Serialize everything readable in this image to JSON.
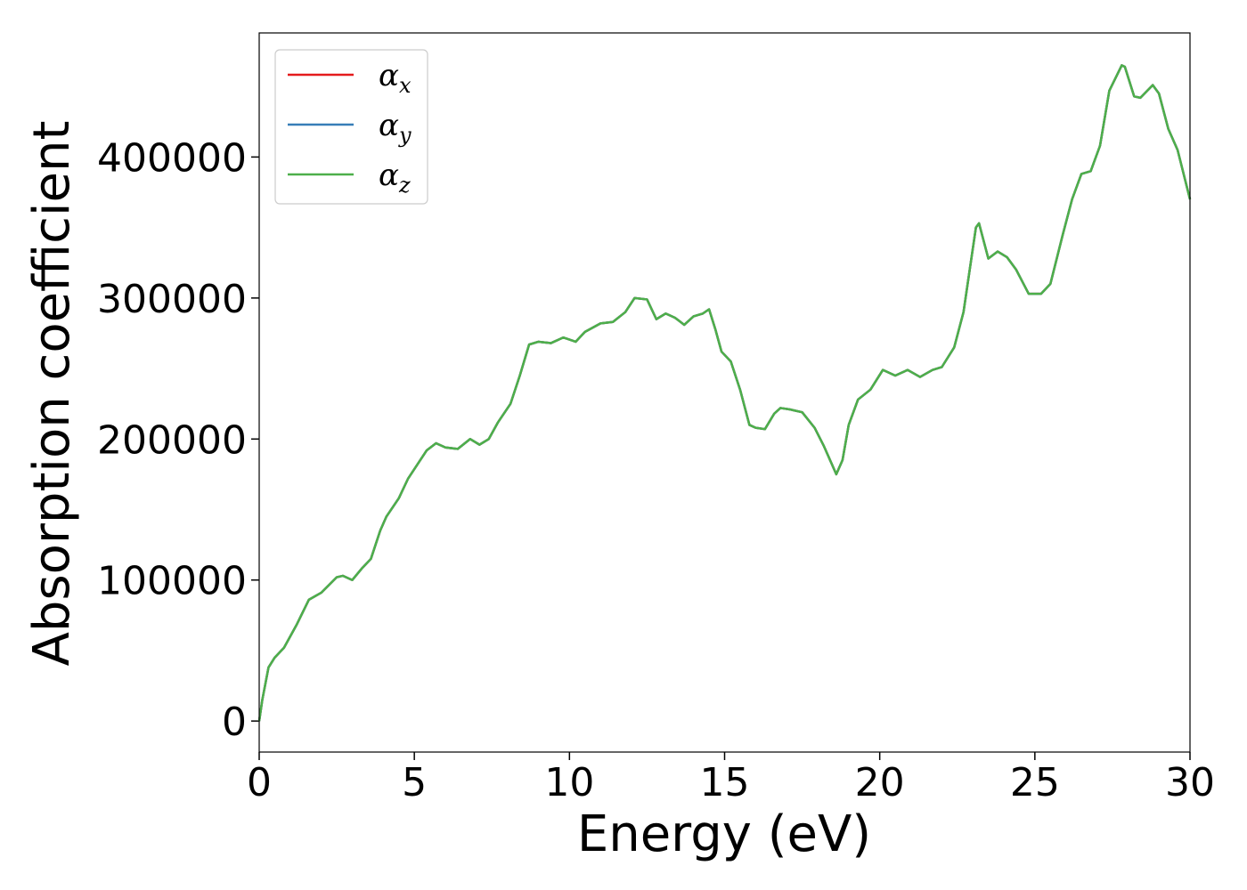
{
  "chart_data": {
    "type": "line",
    "xlabel": "Energy (eV)",
    "ylabel": "Absorption coefficient",
    "xlim": [
      0,
      30
    ],
    "ylim": [
      -22000,
      488000
    ],
    "xticks": [
      0,
      5,
      10,
      15,
      20,
      25,
      30
    ],
    "yticks": [
      0,
      100000,
      200000,
      300000,
      400000
    ],
    "legend": "upper left",
    "grid": false,
    "x": [
      0,
      0.1,
      0.3,
      0.5,
      0.8,
      1.2,
      1.6,
      2.0,
      2.5,
      2.7,
      3.0,
      3.3,
      3.6,
      3.9,
      4.1,
      4.5,
      4.8,
      5.1,
      5.4,
      5.7,
      6.0,
      6.4,
      6.8,
      7.1,
      7.4,
      7.7,
      8.1,
      8.4,
      8.7,
      9.0,
      9.4,
      9.8,
      10.2,
      10.5,
      11.0,
      11.4,
      11.8,
      12.1,
      12.5,
      12.8,
      13.1,
      13.4,
      13.7,
      14.0,
      14.3,
      14.5,
      14.7,
      14.9,
      15.2,
      15.5,
      15.8,
      16.0,
      16.3,
      16.6,
      16.8,
      17.1,
      17.5,
      17.9,
      18.2,
      18.6,
      18.8,
      19.0,
      19.3,
      19.7,
      20.1,
      20.5,
      20.9,
      21.3,
      21.7,
      22.0,
      22.4,
      22.7,
      22.9,
      23.1,
      23.2,
      23.5,
      23.8,
      24.1,
      24.4,
      24.8,
      25.2,
      25.5,
      25.9,
      26.2,
      26.5,
      26.8,
      27.1,
      27.4,
      27.8,
      27.9,
      28.2,
      28.4,
      28.8,
      29.0,
      29.3,
      29.6,
      30.0
    ],
    "series": [
      {
        "name": "αx",
        "color": "#e41a1c",
        "values": [
          0,
          15000,
          38000,
          45000,
          52000,
          68000,
          86000,
          91000,
          102000,
          103000,
          100000,
          108000,
          115000,
          135000,
          145000,
          158000,
          172000,
          182000,
          192000,
          197000,
          194000,
          193000,
          200000,
          196000,
          200000,
          212000,
          225000,
          245000,
          267000,
          269000,
          268000,
          272000,
          269000,
          276000,
          282000,
          283000,
          290000,
          300000,
          299000,
          285000,
          289000,
          286000,
          281000,
          287000,
          289000,
          292000,
          278000,
          262000,
          255000,
          235000,
          210000,
          208000,
          207000,
          218000,
          222000,
          221000,
          219000,
          208000,
          195000,
          175000,
          185000,
          210000,
          228000,
          235000,
          249000,
          245000,
          249000,
          244000,
          249000,
          251000,
          265000,
          290000,
          320000,
          350000,
          353000,
          328000,
          333000,
          329000,
          320000,
          303000,
          303000,
          310000,
          345000,
          370000,
          388000,
          390000,
          408000,
          447000,
          465000,
          464000,
          443000,
          442000,
          451000,
          445000,
          420000,
          405000,
          370000
        ]
      },
      {
        "name": "αy",
        "color": "#377eb8",
        "values": [
          0,
          15000,
          38000,
          45000,
          52000,
          68000,
          86000,
          91000,
          102000,
          103000,
          100000,
          108000,
          115000,
          135000,
          145000,
          158000,
          172000,
          182000,
          192000,
          197000,
          194000,
          193000,
          200000,
          196000,
          200000,
          212000,
          225000,
          245000,
          267000,
          269000,
          268000,
          272000,
          269000,
          276000,
          282000,
          283000,
          290000,
          300000,
          299000,
          285000,
          289000,
          286000,
          281000,
          287000,
          289000,
          292000,
          278000,
          262000,
          255000,
          235000,
          210000,
          208000,
          207000,
          218000,
          222000,
          221000,
          219000,
          208000,
          195000,
          175000,
          185000,
          210000,
          228000,
          235000,
          249000,
          245000,
          249000,
          244000,
          249000,
          251000,
          265000,
          290000,
          320000,
          350000,
          353000,
          328000,
          333000,
          329000,
          320000,
          303000,
          303000,
          310000,
          345000,
          370000,
          388000,
          390000,
          408000,
          447000,
          465000,
          464000,
          443000,
          442000,
          451000,
          445000,
          420000,
          405000,
          370000
        ]
      },
      {
        "name": "αz",
        "color": "#4daf4a",
        "values": [
          0,
          15000,
          38000,
          45000,
          52000,
          68000,
          86000,
          91000,
          102000,
          103000,
          100000,
          108000,
          115000,
          135000,
          145000,
          158000,
          172000,
          182000,
          192000,
          197000,
          194000,
          193000,
          200000,
          196000,
          200000,
          212000,
          225000,
          245000,
          267000,
          269000,
          268000,
          272000,
          269000,
          276000,
          282000,
          283000,
          290000,
          300000,
          299000,
          285000,
          289000,
          286000,
          281000,
          287000,
          289000,
          292000,
          278000,
          262000,
          255000,
          235000,
          210000,
          208000,
          207000,
          218000,
          222000,
          221000,
          219000,
          208000,
          195000,
          175000,
          185000,
          210000,
          228000,
          235000,
          249000,
          245000,
          249000,
          244000,
          249000,
          251000,
          265000,
          290000,
          320000,
          350000,
          353000,
          328000,
          333000,
          329000,
          320000,
          303000,
          303000,
          310000,
          345000,
          370000,
          388000,
          390000,
          408000,
          447000,
          465000,
          464000,
          443000,
          442000,
          451000,
          445000,
          420000,
          405000,
          370000
        ]
      }
    ]
  }
}
